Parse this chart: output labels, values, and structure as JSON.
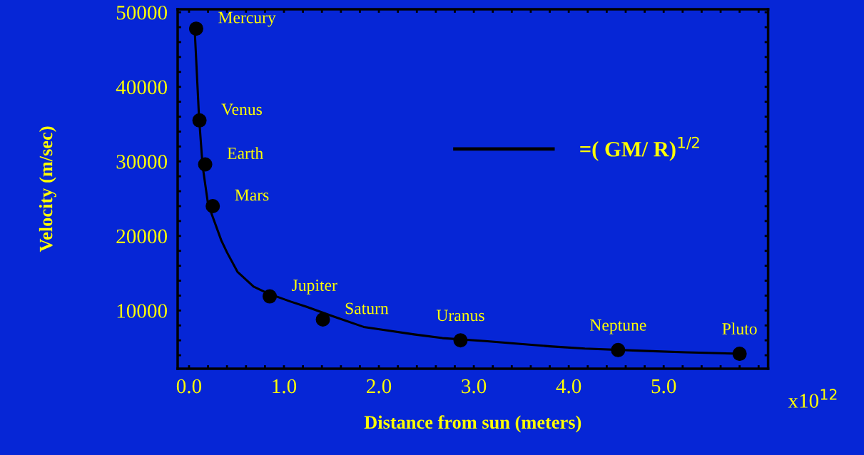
{
  "chart_data": {
    "type": "line",
    "xlabel": "Distance from sun (meters)",
    "ylabel": "Velocity (m/sec)",
    "xlim": [
      -0.12,
      6.1
    ],
    "ylim": [
      2200,
      50400
    ],
    "xticks": [
      {
        "value": 0,
        "label": "0.0"
      },
      {
        "value": 0.2,
        "label": null
      },
      {
        "value": 0.4,
        "label": null
      },
      {
        "value": 0.6,
        "label": null
      },
      {
        "value": 0.8,
        "label": null
      },
      {
        "value": 1,
        "label": "1.0"
      },
      {
        "value": 1.2,
        "label": null
      },
      {
        "value": 1.4,
        "label": null
      },
      {
        "value": 1.6,
        "label": null
      },
      {
        "value": 1.8,
        "label": null
      },
      {
        "value": 2,
        "label": "2.0"
      },
      {
        "value": 2.2,
        "label": null
      },
      {
        "value": 2.4,
        "label": null
      },
      {
        "value": 2.6,
        "label": null
      },
      {
        "value": 2.8,
        "label": null
      },
      {
        "value": 3,
        "label": "3.0"
      },
      {
        "value": 3.2,
        "label": null
      },
      {
        "value": 3.4,
        "label": null
      },
      {
        "value": 3.6,
        "label": null
      },
      {
        "value": 3.8,
        "label": null
      },
      {
        "value": 4,
        "label": "4.0"
      },
      {
        "value": 4.2,
        "label": null
      },
      {
        "value": 4.4,
        "label": null
      },
      {
        "value": 4.6,
        "label": null
      },
      {
        "value": 4.8,
        "label": null
      },
      {
        "value": 5,
        "label": "5.0"
      },
      {
        "value": 5.2,
        "label": null
      },
      {
        "value": 5.4,
        "label": null
      },
      {
        "value": 5.6,
        "label": null
      },
      {
        "value": 5.8,
        "label": null
      },
      {
        "value": 6,
        "label": null
      }
    ],
    "yticks": [
      {
        "value": 4000,
        "label": null
      },
      {
        "value": 6000,
        "label": null
      },
      {
        "value": 8000,
        "label": null
      },
      10000,
      {
        "value": 12000,
        "label": null
      },
      {
        "value": 14000,
        "label": null
      },
      {
        "value": 16000,
        "label": null
      },
      {
        "value": 18000,
        "label": null
      },
      20000,
      {
        "value": 22000,
        "label": null
      },
      {
        "value": 24000,
        "label": null
      },
      {
        "value": 26000,
        "label": null
      },
      {
        "value": 28000,
        "label": null
      },
      30000,
      {
        "value": 32000,
        "label": null
      },
      {
        "value": 34000,
        "label": null
      },
      {
        "value": 36000,
        "label": null
      },
      {
        "value": 38000,
        "label": null
      },
      40000,
      {
        "value": 42000,
        "label": null
      },
      {
        "value": 44000,
        "label": null
      },
      {
        "value": 46000,
        "label": null
      },
      {
        "value": 48000,
        "label": null
      },
      50000
    ],
    "grid": false,
    "legend": "top right",
    "series": [
      {
        "name": "=( GM/ R)$^{1/2}$",
        "color": "#000000",
        "marker": "none",
        "line_style": "solid",
        "x": [
          0.06,
          0.105,
          0.143,
          0.2,
          0.34,
          0.4,
          0.51,
          0.68,
          0.83,
          1.07,
          1.24,
          1.5,
          1.84,
          2.11,
          2.37,
          2.67,
          3.12,
          3.42,
          3.8,
          4.17,
          4.77,
          5.23,
          5.83
        ],
        "values": [
          47600,
          36000,
          29400,
          24300,
          19400,
          17800,
          15200,
          13200,
          12300,
          11200,
          10500,
          9300,
          7800,
          7300,
          6800,
          6300,
          5900,
          5600,
          5200,
          4900,
          4600,
          4400,
          4200
        ]
      },
      {
        "type": "scatter",
        "color": "#000000",
        "marker": "circle",
        "x": [
          0.075,
          0.11,
          0.17,
          0.25,
          0.85,
          1.41,
          2.86,
          4.52,
          5.8
        ],
        "values": [
          47800,
          35500,
          29600,
          24000,
          11900,
          8800,
          6000,
          4700,
          4200
        ]
      }
    ],
    "annotations": [
      {
        "text": "Mercury",
        "x": 0.075,
        "y": 47800
      },
      {
        "text": "Venus",
        "x": 0.11,
        "y": 35500
      },
      {
        "text": "Earth",
        "x": 0.17,
        "y": 29600
      },
      {
        "text": "Mars",
        "x": 0.25,
        "y": 24000
      },
      {
        "text": "Jupiter",
        "x": 0.85,
        "y": 11900
      },
      {
        "text": "Saturn",
        "x": 1.41,
        "y": 8800
      },
      {
        "text": "Uranus",
        "x": 2.86,
        "y": 6000
      },
      {
        "text": "Neptune",
        "x": 4.52,
        "y": 4700
      },
      {
        "text": "Pluto",
        "x": 5.8,
        "y": 4200
      },
      "x10$^{12}$"
    ]
  }
}
